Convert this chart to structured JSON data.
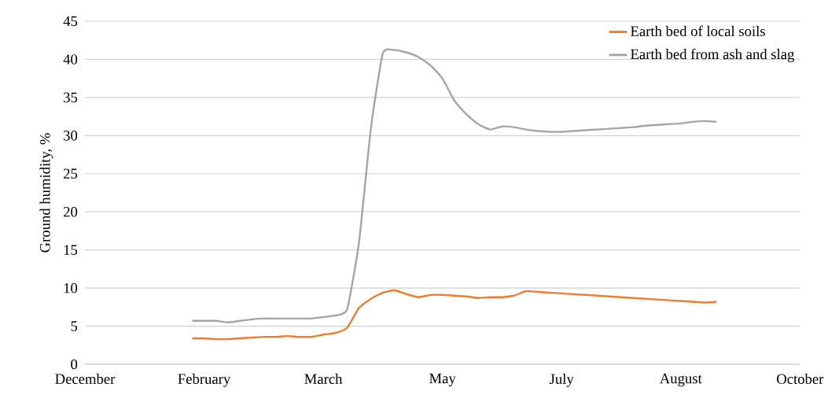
{
  "chart_data": {
    "type": "line",
    "ylabel": "Ground humidity,  %",
    "categories": [
      "December",
      null,
      null,
      null,
      null,
      null,
      null,
      null,
      null,
      null,
      "February",
      null,
      null,
      null,
      null,
      null,
      null,
      null,
      null,
      null,
      "March",
      null,
      null,
      null,
      null,
      null,
      null,
      null,
      null,
      null,
      "May",
      null,
      null,
      null,
      null,
      null,
      null,
      null,
      null,
      null,
      "July",
      null,
      null,
      null,
      null,
      null,
      null,
      null,
      null,
      null,
      "August",
      null,
      null,
      null,
      null,
      null,
      null,
      null,
      null,
      null,
      "October"
    ],
    "ylim": [
      0,
      45
    ],
    "yticks": [
      0,
      5,
      10,
      15,
      20,
      25,
      30,
      35,
      40,
      45
    ],
    "grid": "y",
    "legend": "top right",
    "marker": "none",
    "line_style": "solid",
    "series": [
      {
        "name": "Earth bed of local soils",
        "color": "#ed7d31",
        "values": [
          null,
          null,
          null,
          null,
          null,
          null,
          null,
          null,
          null,
          3.4,
          3.4,
          3.3,
          3.3,
          3.4,
          3.5,
          3.6,
          3.6,
          3.7,
          3.6,
          3.6,
          3.9,
          4.1,
          4.8,
          7.4,
          8.6,
          9.4,
          9.7,
          9.2,
          8.8,
          9.1,
          9.1,
          9.0,
          8.9,
          8.7,
          8.8,
          8.8,
          9.0,
          9.6,
          9.5,
          9.4,
          9.3,
          9.2,
          9.1,
          9.0,
          8.9,
          8.8,
          8.7,
          8.6,
          8.5,
          8.4,
          8.3,
          8.2,
          8.1,
          8.2,
          null,
          null,
          null,
          null,
          null,
          null,
          null
        ]
      },
      {
        "name": "Earth bed from ash and slag",
        "color": "#a5a5a5",
        "values": [
          null,
          null,
          null,
          null,
          null,
          null,
          null,
          null,
          null,
          5.7,
          5.7,
          5.7,
          5.5,
          5.7,
          5.9,
          6.0,
          6.0,
          6.0,
          6.0,
          6.0,
          6.2,
          6.4,
          7.2,
          16,
          31,
          40.8,
          41.2,
          40.9,
          40.3,
          39.2,
          37.5,
          34.6,
          32.8,
          31.5,
          30.8,
          31.2,
          31.1,
          30.8,
          30.6,
          30.5,
          30.5,
          30.6,
          30.7,
          30.8,
          30.9,
          31.0,
          31.1,
          31.3,
          31.4,
          31.5,
          31.6,
          31.8,
          31.9,
          31.8,
          null,
          null,
          null,
          null,
          null,
          null,
          null
        ]
      }
    ]
  }
}
